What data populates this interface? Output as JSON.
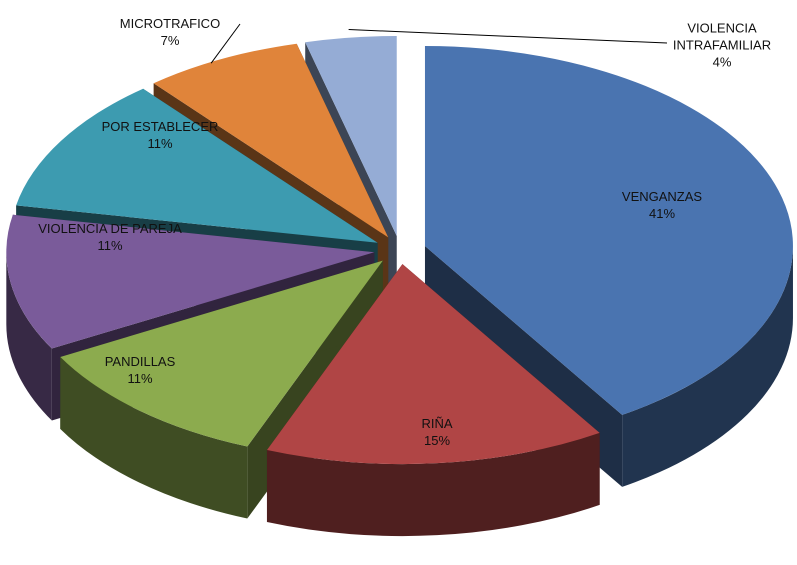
{
  "chart_data": {
    "type": "pie",
    "categories": [
      "VENGANZAS",
      "RIÑA",
      "PANDILLAS",
      "VIOLENCIA DE PAREJA",
      "POR ESTABLECER",
      "MICROTRAFICO",
      "VIOLENCIA INTRAFAMILIAR"
    ],
    "values": [
      41,
      15,
      11,
      11,
      11,
      7,
      4
    ],
    "value_labels": [
      "41%",
      "15%",
      "11%",
      "11%",
      "11%",
      "7%",
      "4%"
    ],
    "colors": [
      "#4a74b0",
      "#b04545",
      "#8cab4e",
      "#7a5b9a",
      "#3d9bb0",
      "#e0843a",
      "#95acd5"
    ]
  }
}
